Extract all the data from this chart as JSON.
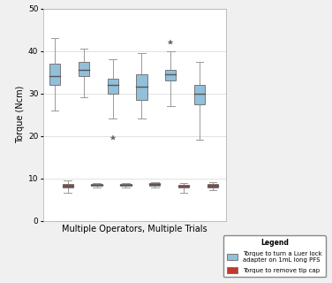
{
  "title": "",
  "xlabel": "Multiple Operators, Multiple Trials",
  "ylabel": "Torque (Ncm)",
  "ylim": [
    0,
    50
  ],
  "yticks": [
    0,
    10,
    20,
    30,
    40,
    50
  ],
  "blue_boxes": [
    {
      "med": 34,
      "q1": 32,
      "q3": 37,
      "whislo": 26,
      "whishi": 43,
      "fliers": []
    },
    {
      "med": 35.5,
      "q1": 34,
      "q3": 37.5,
      "whislo": 29,
      "whishi": 40.5,
      "fliers": []
    },
    {
      "med": 32,
      "q1": 30,
      "q3": 33.5,
      "whislo": 24,
      "whishi": 38,
      "fliers": [
        19.5
      ]
    },
    {
      "med": 31.5,
      "q1": 28.5,
      "q3": 34.5,
      "whislo": 24,
      "whishi": 39.5,
      "fliers": []
    },
    {
      "med": 34.5,
      "q1": 33,
      "q3": 35.5,
      "whislo": 27,
      "whishi": 40,
      "fliers": [
        42
      ]
    },
    {
      "med": 30,
      "q1": 27.5,
      "q3": 32,
      "whislo": 19,
      "whishi": 37.5,
      "fliers": []
    }
  ],
  "red_boxes": [
    {
      "med": 8.3,
      "q1": 7.8,
      "q3": 8.6,
      "whislo": 6.5,
      "whishi": 9.5,
      "fliers": []
    },
    {
      "med": 8.5,
      "q1": 8.2,
      "q3": 8.7,
      "whislo": 7.8,
      "whishi": 8.9,
      "fliers": []
    },
    {
      "med": 8.5,
      "q1": 8.2,
      "q3": 8.7,
      "whislo": 7.8,
      "whishi": 8.9,
      "fliers": []
    },
    {
      "med": 8.6,
      "q1": 8.2,
      "q3": 8.9,
      "whislo": 7.8,
      "whishi": 9.0,
      "fliers": []
    },
    {
      "med": 8.2,
      "q1": 7.8,
      "q3": 8.5,
      "whislo": 6.5,
      "whishi": 8.8,
      "fliers": []
    },
    {
      "med": 8.3,
      "q1": 7.9,
      "q3": 8.6,
      "whislo": 7.2,
      "whishi": 9.0,
      "fliers": []
    }
  ],
  "blue_color": "#92BFDA",
  "red_color": "#C0392B",
  "box_positions_blue": [
    1.0,
    3.0,
    5.0,
    7.0,
    9.0,
    11.0
  ],
  "box_positions_red": [
    1.9,
    3.9,
    5.9,
    7.9,
    9.9,
    11.9
  ],
  "background_color": "#F0F0F0",
  "plot_bg_color": "#FFFFFF",
  "legend_title": "Legend",
  "legend_blue_label": "Torque to turn a Luer lock\nadapter on 1mL long PFS",
  "legend_red_label": "Torque to remove tip cap",
  "grid_color": "#CCCCCC",
  "box_width": 0.75
}
